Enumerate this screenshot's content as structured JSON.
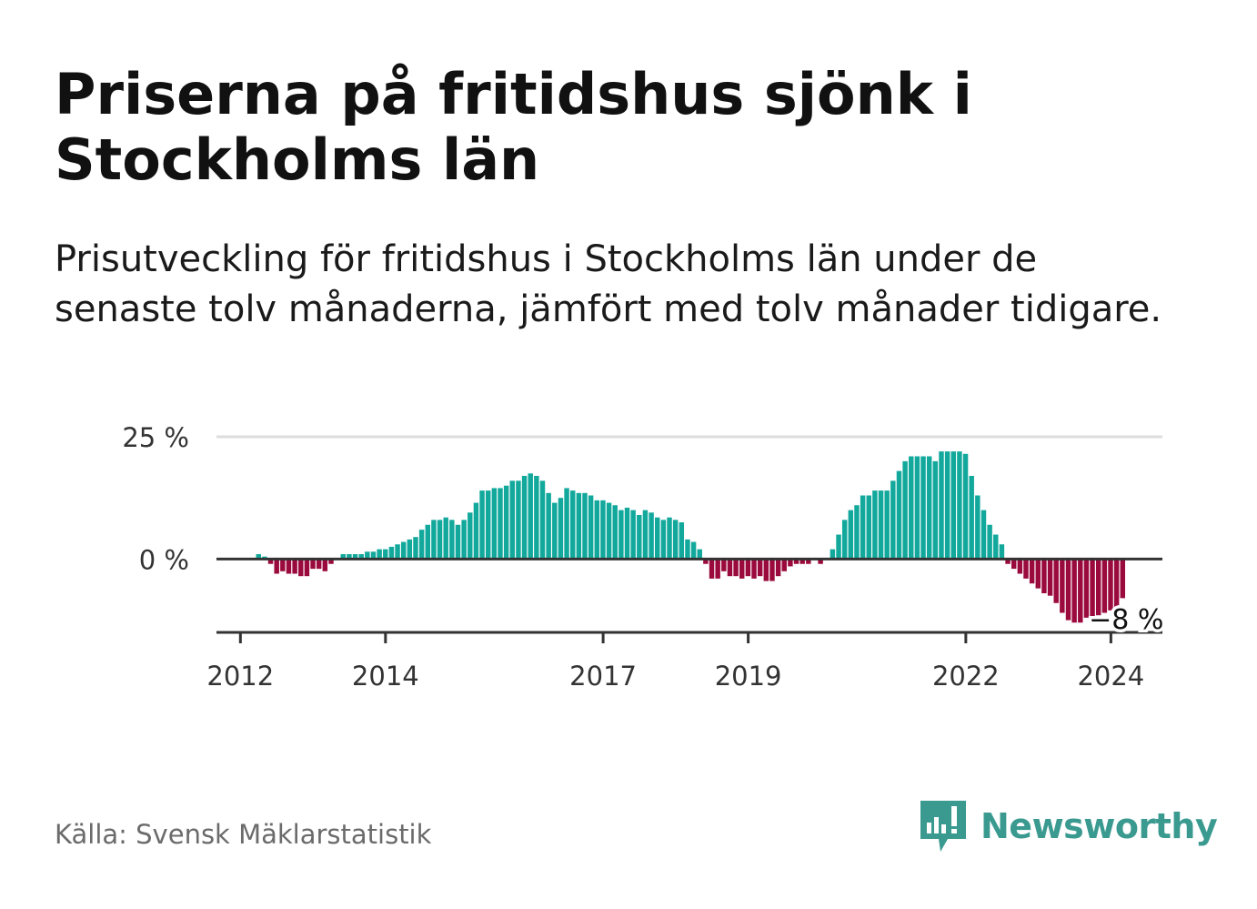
{
  "title": "Priserna på fritidshus sjönk i Stockholms län",
  "subtitle": "Prisutveckling för fritidshus i Stockholms län under de senaste tolv månaderna, jämfört med tolv månader tidigare.",
  "source": "Källa: Svensk Mäklarstatistik",
  "brand": "Newsworthy",
  "colors": {
    "positive": "#12a89c",
    "negative": "#9b0a3c",
    "axis": "#333333",
    "grid": "#dddddd",
    "brand": "#3a9a90"
  },
  "chart_data": {
    "type": "bar",
    "title": "",
    "xlabel": "",
    "ylabel": "",
    "ylim": [
      -15,
      25
    ],
    "y_ticks": [
      {
        "value": 25,
        "label": "25 %"
      },
      {
        "value": 0,
        "label": "0 %"
      }
    ],
    "x_ticks": [
      {
        "value": 2012.0,
        "label": "2012"
      },
      {
        "value": 2014.0,
        "label": "2014"
      },
      {
        "value": 2017.0,
        "label": "2017"
      },
      {
        "value": 2019.0,
        "label": "2019"
      },
      {
        "value": 2022.0,
        "label": "2022"
      },
      {
        "value": 2024.0,
        "label": "2024"
      }
    ],
    "start": 2012.25,
    "step": 0.0833,
    "values": [
      1,
      0.5,
      -1,
      -3,
      -2.5,
      -3,
      -3,
      -3.5,
      -3.5,
      -2,
      -2,
      -2.5,
      -1,
      0,
      1,
      1,
      1,
      1,
      1.5,
      1.5,
      2,
      2,
      2.5,
      3,
      3.5,
      4,
      4.5,
      6,
      7,
      8,
      8,
      8.5,
      8,
      7,
      8,
      9.5,
      11.5,
      14,
      14,
      14.5,
      14.5,
      15,
      16,
      16,
      17,
      17.5,
      17,
      16,
      13.5,
      11.5,
      12.5,
      14.5,
      14,
      13.5,
      13.5,
      13,
      12,
      12,
      11.5,
      11,
      10,
      10.5,
      10,
      9,
      10,
      9.5,
      8.5,
      8,
      8.5,
      8,
      7.5,
      4,
      3.5,
      2,
      -1,
      -4,
      -4,
      -2.5,
      -3.5,
      -3.5,
      -4,
      -3.5,
      -4,
      -3.5,
      -4.5,
      -4.5,
      -3.5,
      -2.5,
      -1.5,
      -1,
      -1,
      -1,
      0,
      -1,
      0,
      2,
      5,
      8,
      10,
      11,
      13,
      13,
      14,
      14,
      14,
      16,
      18,
      20,
      21,
      21,
      21,
      21,
      20,
      22,
      22,
      22,
      22,
      21.5,
      17,
      13,
      10,
      7,
      5,
      3,
      -1,
      -2,
      -3,
      -4,
      -5,
      -6,
      -7,
      -7.5,
      -9,
      -11,
      -12.5,
      -13,
      -13,
      -12,
      -12.5,
      -11.5,
      -11,
      -10.5,
      -10,
      -8
    ],
    "annotations": [
      {
        "label": "−8 %"
      }
    ]
  }
}
